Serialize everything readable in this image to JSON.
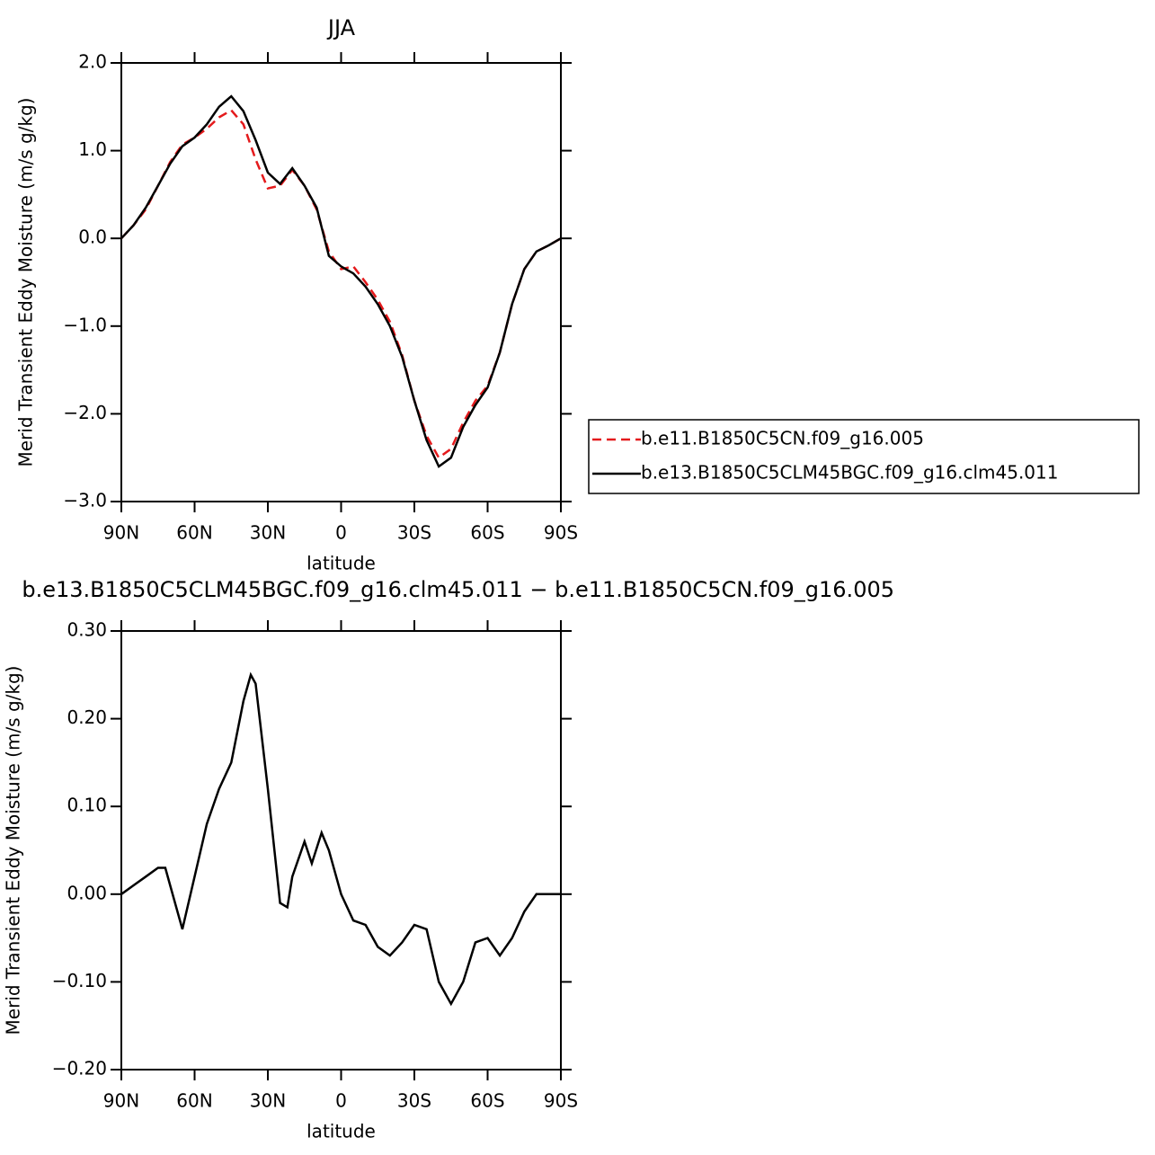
{
  "chart_data": [
    {
      "type": "line",
      "title": "JJA",
      "xlabel": "latitude",
      "ylabel": "Merid Transient Eddy Moisture (m/s g/kg)",
      "x": [
        90,
        85,
        80,
        75,
        70,
        65,
        60,
        55,
        50,
        45,
        40,
        35,
        30,
        25,
        20,
        15,
        10,
        5,
        0,
        -5,
        -10,
        -15,
        -20,
        -25,
        -30,
        -35,
        -40,
        -45,
        -50,
        -55,
        -60,
        -65,
        -70,
        -75,
        -80,
        -85,
        -90
      ],
      "series": [
        {
          "name": "b.e11.B1850C5CN.f09_g16.005",
          "color": "#e41a1c",
          "line_style": "dashed",
          "values": [
            0,
            0.15,
            0.33,
            0.6,
            0.87,
            1.07,
            1.15,
            1.25,
            1.38,
            1.46,
            1.3,
            0.9,
            0.57,
            0.6,
            0.78,
            0.6,
            0.33,
            -0.15,
            -0.35,
            -0.32,
            -0.5,
            -0.7,
            -0.95,
            -1.33,
            -1.85,
            -2.25,
            -2.5,
            -2.4,
            -2.1,
            -1.85,
            -1.68,
            -1.3,
            -0.75,
            -0.35,
            -0.15,
            -0.08,
            0
          ]
        },
        {
          "name": "b.e13.B1850C5CLM45BGC.f09_g16.clm45.011",
          "color": "#000000",
          "line_style": "solid",
          "values": [
            0,
            0.15,
            0.35,
            0.6,
            0.85,
            1.05,
            1.15,
            1.3,
            1.5,
            1.62,
            1.45,
            1.12,
            0.75,
            0.62,
            0.8,
            0.6,
            0.35,
            -0.2,
            -0.32,
            -0.4,
            -0.55,
            -0.75,
            -1.0,
            -1.35,
            -1.85,
            -2.3,
            -2.6,
            -2.5,
            -2.15,
            -1.9,
            -1.7,
            -1.3,
            -0.75,
            -0.35,
            -0.15,
            -0.08,
            0
          ]
        }
      ],
      "xlim": [
        90,
        -90
      ],
      "xticks": [
        {
          "value": 90,
          "label": "90N"
        },
        {
          "value": 60,
          "label": "60N"
        },
        {
          "value": 30,
          "label": "30N"
        },
        0,
        {
          "value": -30,
          "label": "30S"
        },
        {
          "value": -60,
          "label": "60S"
        },
        {
          "value": -90,
          "label": "90S"
        }
      ],
      "ylim": [
        -3,
        2
      ],
      "yticks": [
        {
          "value": 2,
          "label": "2.0"
        },
        {
          "value": 1,
          "label": "1.0"
        },
        {
          "value": 0,
          "label": "0.0"
        },
        {
          "value": -1,
          "label": "−1.0"
        },
        {
          "value": -2,
          "label": "−2.0"
        },
        {
          "value": -3,
          "label": "−3.0"
        }
      ],
      "legend": "right"
    },
    {
      "type": "line",
      "title": "b.e13.B1850C5CLM45BGC.f09_g16.clm45.011 − b.e11.B1850C5CN.f09_g16.005",
      "xlabel": "latitude",
      "ylabel": "Merid Transient Eddy Moisture (m/s g/kg)",
      "x": [
        90,
        85,
        80,
        75,
        72,
        70,
        65,
        60,
        55,
        50,
        45,
        40,
        37,
        35,
        30,
        25,
        22,
        20,
        15,
        12,
        8,
        5,
        0,
        -5,
        -10,
        -15,
        -20,
        -25,
        -30,
        -35,
        -40,
        -45,
        -50,
        -55,
        -60,
        -65,
        -70,
        -75,
        -80,
        -85,
        -90
      ],
      "series": [
        {
          "color": "#000000",
          "line_style": "solid",
          "values": [
            0,
            0.01,
            0.02,
            0.03,
            0.03,
            0.01,
            -0.04,
            0.02,
            0.08,
            0.12,
            0.15,
            0.22,
            0.25,
            0.24,
            0.12,
            -0.01,
            -0.015,
            0.02,
            0.06,
            0.035,
            0.07,
            0.05,
            0,
            -0.03,
            -0.035,
            -0.06,
            -0.07,
            -0.055,
            -0.035,
            -0.04,
            -0.1,
            -0.125,
            -0.1,
            -0.055,
            -0.05,
            -0.07,
            -0.05,
            -0.02,
            0,
            0,
            0
          ]
        }
      ],
      "xlim": [
        90,
        -90
      ],
      "xticks": [
        {
          "value": 90,
          "label": "90N"
        },
        {
          "value": 60,
          "label": "60N"
        },
        {
          "value": 30,
          "label": "30N"
        },
        0,
        {
          "value": -30,
          "label": "30S"
        },
        {
          "value": -60,
          "label": "60S"
        },
        {
          "value": -90,
          "label": "90S"
        }
      ],
      "ylim": [
        -0.2,
        0.3
      ],
      "yticks": [
        {
          "value": 0.3,
          "label": "0.30"
        },
        {
          "value": 0.2,
          "label": "0.20"
        },
        {
          "value": 0.1,
          "label": "0.10"
        },
        {
          "value": 0,
          "label": "0.00"
        },
        {
          "value": -0.1,
          "label": "−0.10"
        },
        {
          "value": -0.2,
          "label": "−0.20"
        }
      ]
    }
  ]
}
